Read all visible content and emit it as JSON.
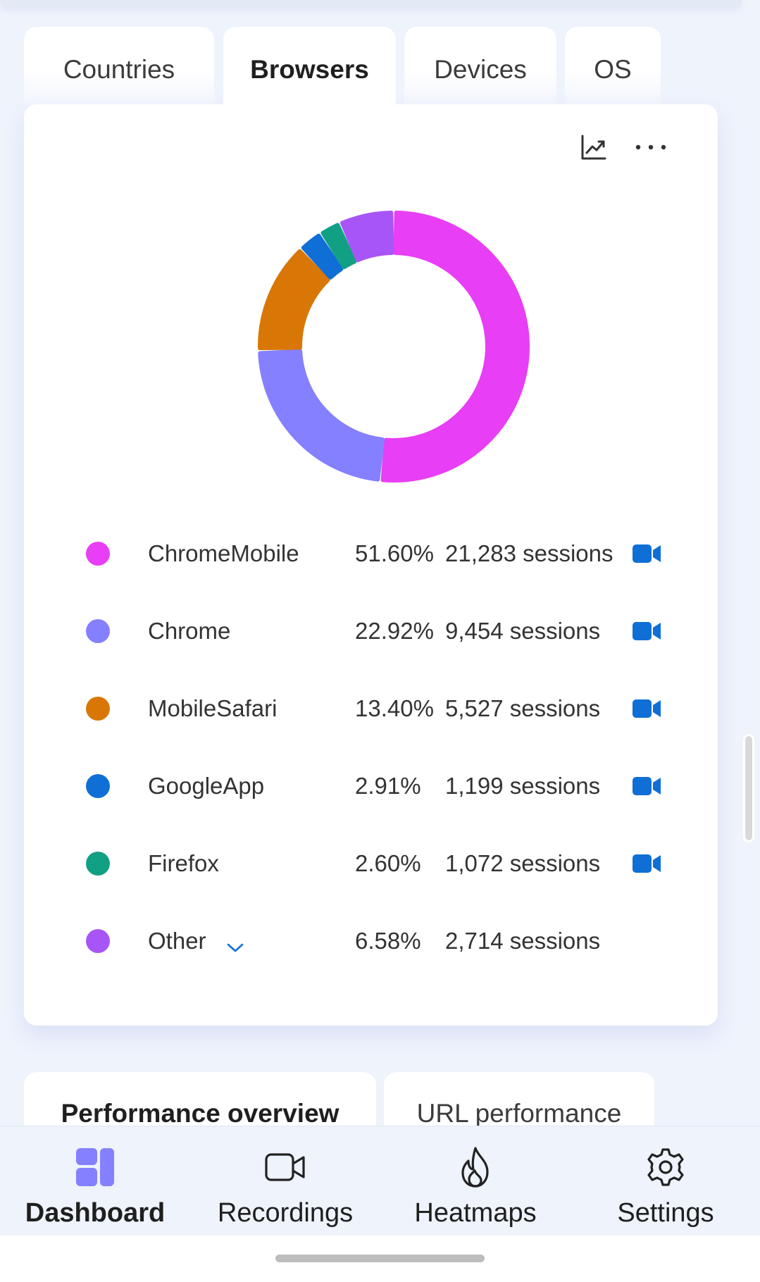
{
  "tabs": [
    {
      "label": "Countries",
      "active": false
    },
    {
      "label": "Browsers",
      "active": true
    },
    {
      "label": "Devices",
      "active": false
    },
    {
      "label": "OS",
      "active": false
    }
  ],
  "card": {
    "icons": [
      "trend-chart-icon",
      "more-options-icon"
    ]
  },
  "chart_data": {
    "type": "pie",
    "style": "donut",
    "categories": [
      "ChromeMobile",
      "Chrome",
      "MobileSafari",
      "GoogleApp",
      "Firefox",
      "Other"
    ],
    "values": [
      51.6,
      22.92,
      13.4,
      2.91,
      2.6,
      6.58
    ],
    "colors": [
      "#e83ef5",
      "#8580ff",
      "#d97706",
      "#0f6fd6",
      "#12a085",
      "#a855f7"
    ]
  },
  "legend": [
    {
      "name": "ChromeMobile",
      "percent": "51.60%",
      "sessions": "21,283 sessions",
      "color": "#e83ef5",
      "has_recording": true
    },
    {
      "name": "Chrome",
      "percent": "22.92%",
      "sessions": "9,454 sessions",
      "color": "#8580ff",
      "has_recording": true
    },
    {
      "name": "MobileSafari",
      "percent": "13.40%",
      "sessions": "5,527 sessions",
      "color": "#d97706",
      "has_recording": true
    },
    {
      "name": "GoogleApp",
      "percent": "2.91%",
      "sessions": "1,199 sessions",
      "color": "#0f6fd6",
      "has_recording": true
    },
    {
      "name": "Firefox",
      "percent": "2.60%",
      "sessions": "1,072 sessions",
      "color": "#12a085",
      "has_recording": true
    },
    {
      "name": "Other",
      "percent": "6.58%",
      "sessions": "2,714 sessions",
      "color": "#a855f7",
      "has_recording": false,
      "expandable": true
    }
  ],
  "lower_tabs": [
    {
      "label": "Performance overview",
      "active": true
    },
    {
      "label": "URL performance",
      "active": false
    }
  ],
  "nav": [
    {
      "label": "Dashboard",
      "icon": "dashboard-icon",
      "active": true
    },
    {
      "label": "Recordings",
      "icon": "video-camera-icon",
      "active": false
    },
    {
      "label": "Heatmaps",
      "icon": "flame-icon",
      "active": false
    },
    {
      "label": "Settings",
      "icon": "gear-icon",
      "active": false
    }
  ],
  "colors": {
    "accent": "#0f6fd6",
    "nav_active": "#8580ff",
    "background": "#eef3fc"
  }
}
